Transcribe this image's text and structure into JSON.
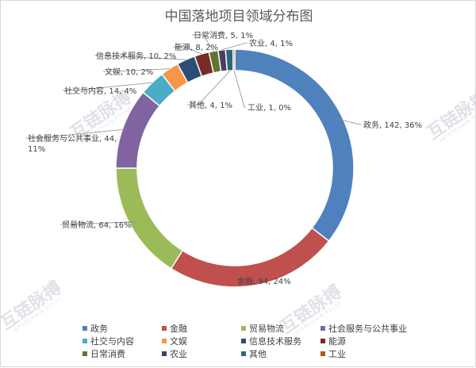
{
  "watermark": {
    "text": "互链脉搏",
    "subtext": "INTERCHAIN PULSE"
  },
  "chart_data": {
    "type": "pie",
    "donut": true,
    "title": "中国落地项目领域分布图",
    "legend_position": "bottom",
    "slices": [
      {
        "name": "政务",
        "value": 142,
        "percent_label": "36%",
        "color": "#4f81bd"
      },
      {
        "name": "金融",
        "value": 94,
        "percent_label": "24%",
        "color": "#c0504d"
      },
      {
        "name": "贸易物流",
        "value": 64,
        "percent_label": "16%",
        "color": "#9bbb59"
      },
      {
        "name": "社会服务与公共事业",
        "value": 44,
        "percent_label": "11%",
        "color": "#8064a2"
      },
      {
        "name": "社交与内容",
        "value": 14,
        "percent_label": "4%",
        "color": "#4bacc6"
      },
      {
        "name": "文娱",
        "value": 10,
        "percent_label": "2%",
        "color": "#f79646"
      },
      {
        "name": "信息技术服务",
        "value": 10,
        "percent_label": "2%",
        "color": "#2c4d75"
      },
      {
        "name": "能源",
        "value": 8,
        "percent_label": "2%",
        "color": "#772c2a"
      },
      {
        "name": "日常消费",
        "value": 5,
        "percent_label": "1%",
        "color": "#5f7530"
      },
      {
        "name": "农业",
        "value": 4,
        "percent_label": "1%",
        "color": "#4d3b62"
      },
      {
        "name": "其他",
        "value": 4,
        "percent_label": "1%",
        "color": "#276a7c"
      },
      {
        "name": "工业",
        "value": 1,
        "percent_label": "0%",
        "color": "#b65708"
      }
    ]
  }
}
